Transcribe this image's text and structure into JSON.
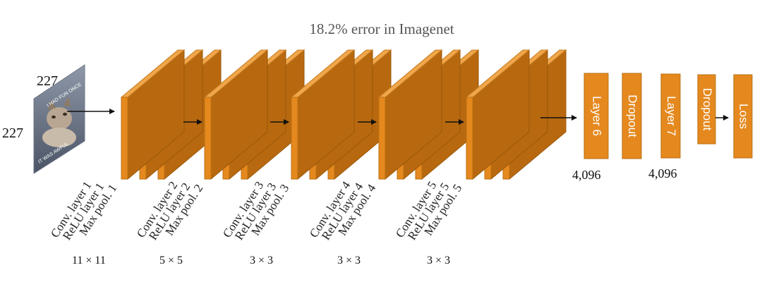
{
  "title": "18.2% error in Imagenet",
  "input": {
    "width_label": "227",
    "height_label": "227",
    "image_text_top": "I HAD FUN ONCE",
    "image_text_bottom": "IT WAS AWFUL"
  },
  "conv_groups": [
    {
      "labels": [
        "Conv. layer 1",
        "ReLU layer 1",
        "Max pool. 1"
      ],
      "kernel": "11 × 11"
    },
    {
      "labels": [
        "Conv. layer 2",
        "ReLU layer 2",
        "Max pool. 2"
      ],
      "kernel": "5 × 5"
    },
    {
      "labels": [
        "Conv. layer 3",
        "ReLU layer 3",
        "Max pool. 3"
      ],
      "kernel": "3 × 3"
    },
    {
      "labels": [
        "Conv. layer 4",
        "ReLU layer 4",
        "Max pool. 4"
      ],
      "kernel": "3 × 3"
    },
    {
      "labels": [
        "Conv. layer 5",
        "ReLU layer 5",
        "Max pool. 5"
      ],
      "kernel": "3 × 3"
    }
  ],
  "fc_layers": [
    {
      "label": "Layer 6"
    },
    {
      "label": "Dropout"
    },
    {
      "label": "Layer 7"
    },
    {
      "label": "Dropout"
    },
    {
      "label": "Loss"
    }
  ],
  "fc_units": [
    "4,096",
    "4,096"
  ],
  "colors": {
    "front": "#E5891E",
    "side": "#B8690F",
    "top": "#F0A64A"
  }
}
